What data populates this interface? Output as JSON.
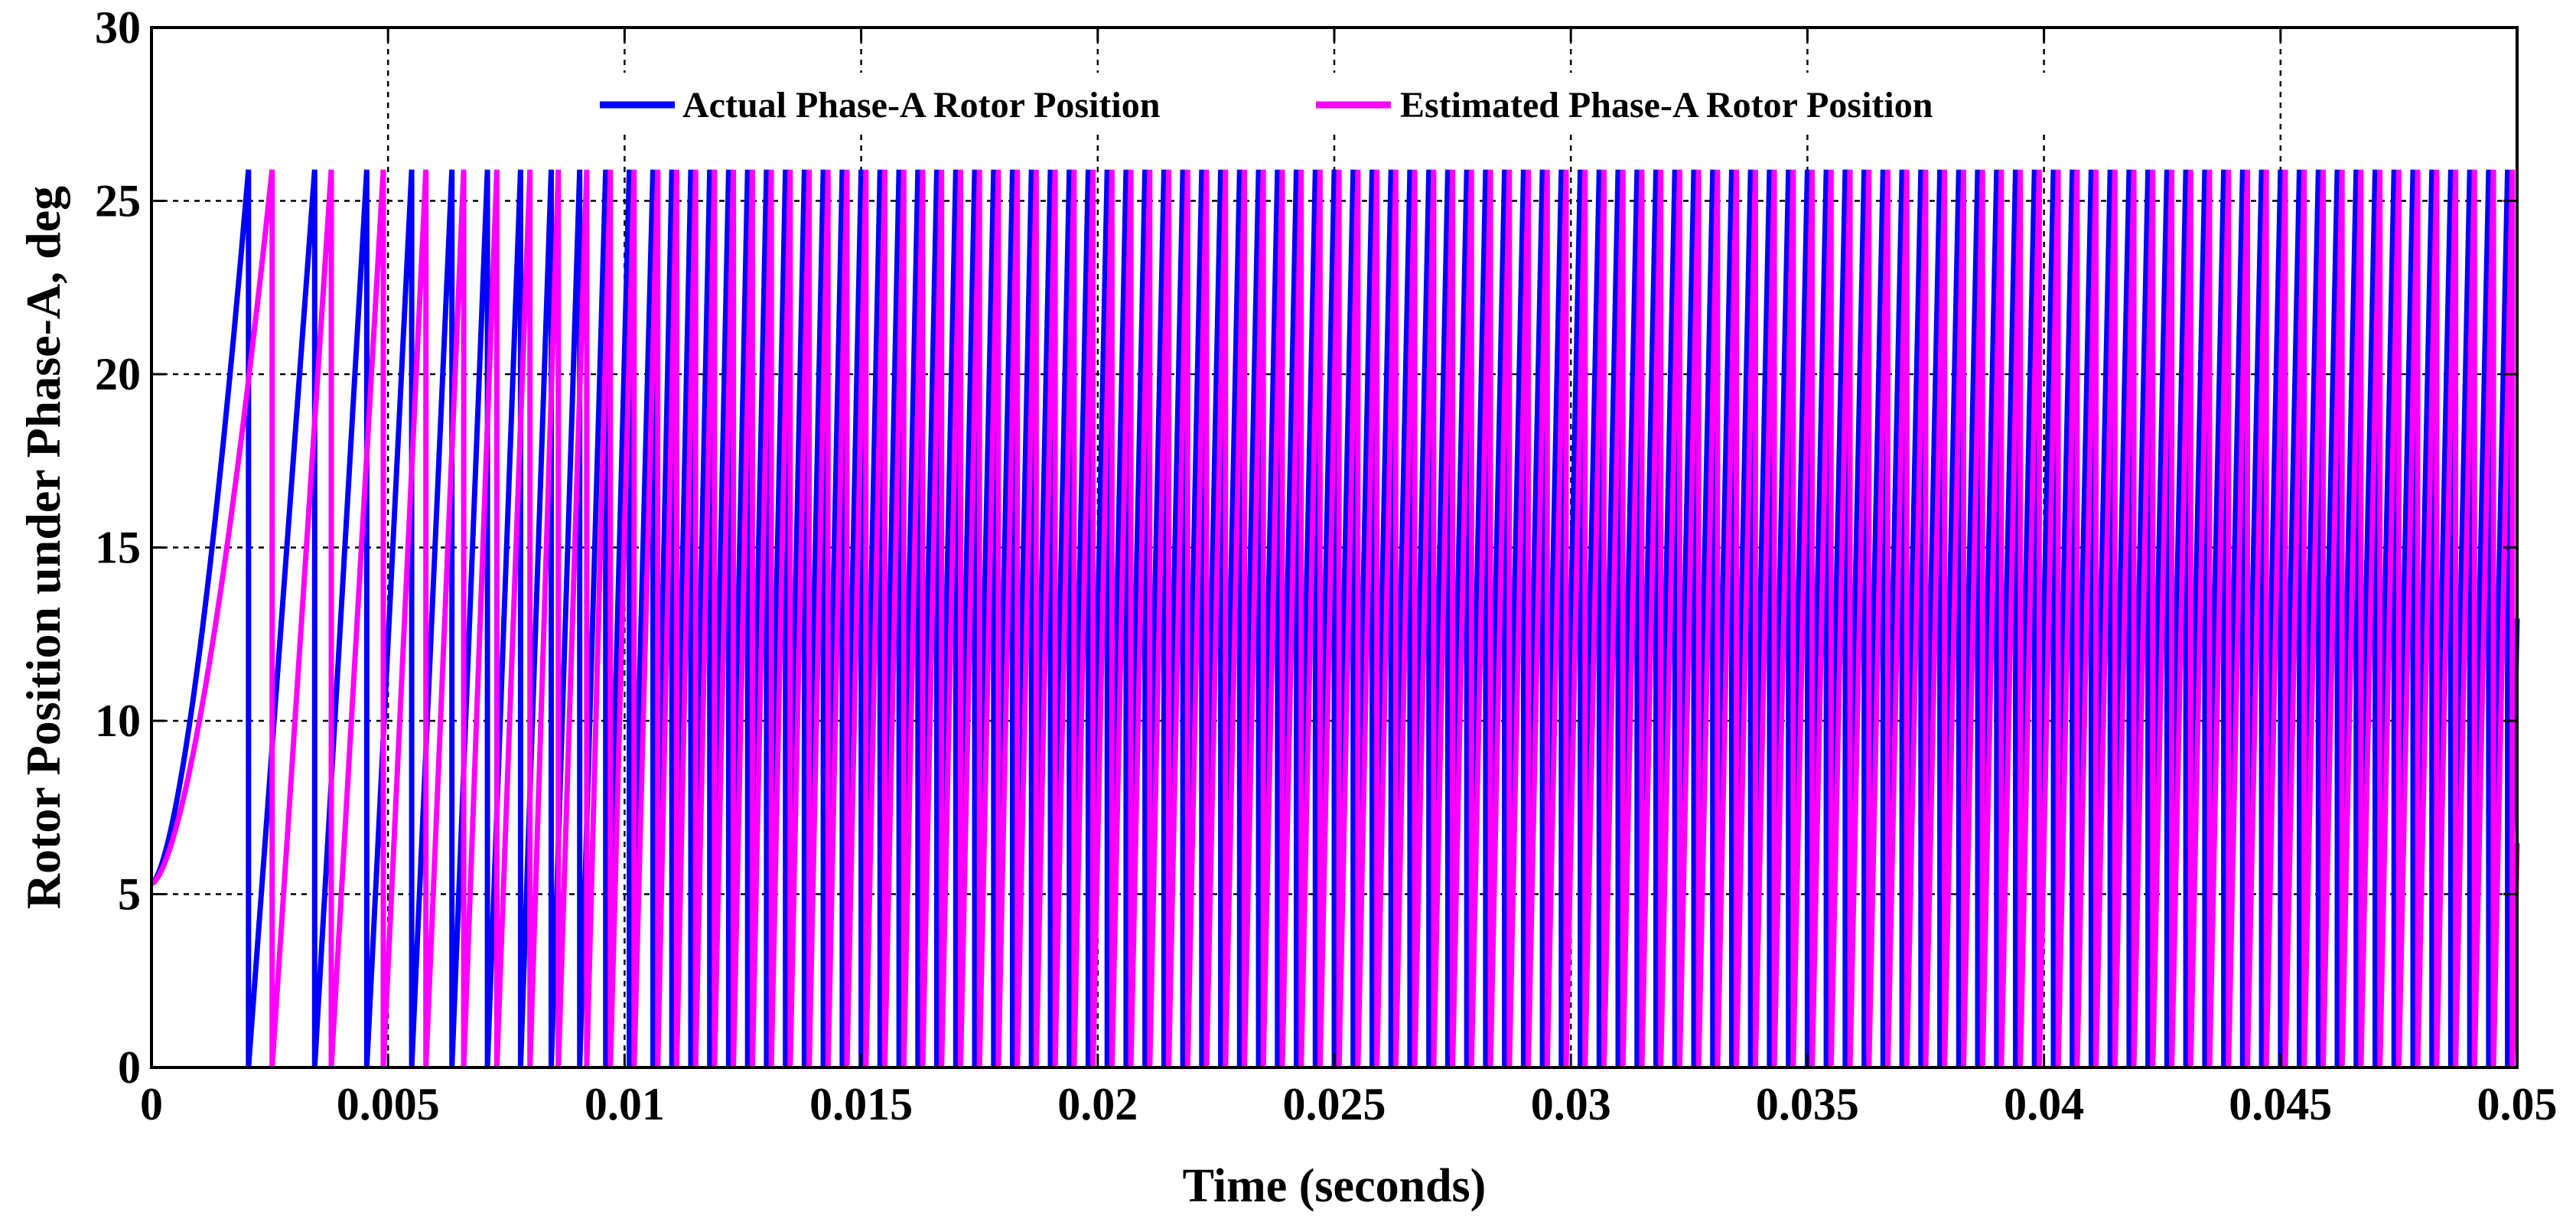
{
  "chart_data": {
    "type": "line",
    "title": "",
    "xlabel": "Time (seconds)",
    "ylabel": "Rotor Position under Phase-A, deg",
    "xlim": [
      0,
      0.05
    ],
    "ylim": [
      0,
      30
    ],
    "x_ticks": [
      "0",
      "0.005",
      "0.01",
      "0.015",
      "0.02",
      "0.025",
      "0.03",
      "0.035",
      "0.04",
      "0.045",
      "0.05"
    ],
    "y_ticks": [
      "0",
      "5",
      "10",
      "15",
      "20",
      "25",
      "30"
    ],
    "grid": true,
    "legend_position": "top-center",
    "series": [
      {
        "name": "Actual Phase-A Rotor Position",
        "color": "#0000FF",
        "initial_value": 5.3,
        "peak_value": 25.9,
        "waveform": "sawtooth",
        "first_reset_time": 0.00205,
        "reset_times": [
          0.00205,
          0.00345,
          0.00455,
          0.0055,
          0.00635,
          0.0071,
          0.0078,
          0.00845,
          0.00905,
          0.0096,
          0.0101,
          0.0106,
          0.011,
          0.0114,
          0.0118,
          0.0122,
          0.0126,
          0.013,
          0.0134,
          0.0138,
          0.0142,
          0.0146,
          0.015,
          0.0154,
          0.0158,
          0.0162,
          0.0166,
          0.017,
          0.0174,
          0.0178,
          0.0182,
          0.0186,
          0.019,
          0.0194,
          0.0198,
          0.0202,
          0.0206,
          0.021,
          0.0214,
          0.0218,
          0.0222,
          0.0226,
          0.023,
          0.0234,
          0.0238,
          0.0242,
          0.0246,
          0.025,
          0.0254,
          0.0258,
          0.0262,
          0.0266,
          0.027,
          0.0274,
          0.0278,
          0.0282,
          0.0286,
          0.029,
          0.0294,
          0.0298,
          0.0302,
          0.0306,
          0.031,
          0.0314,
          0.0318,
          0.0322,
          0.0326,
          0.033,
          0.0334,
          0.0338,
          0.0342,
          0.0346,
          0.035,
          0.0354,
          0.0358,
          0.0362,
          0.0366,
          0.037,
          0.0374,
          0.0378,
          0.0382,
          0.0386,
          0.039,
          0.0394,
          0.0398,
          0.0402,
          0.0406,
          0.041,
          0.0414,
          0.0418,
          0.0422,
          0.0426,
          0.043,
          0.0434,
          0.0438,
          0.0442,
          0.0446,
          0.045,
          0.0454,
          0.0458,
          0.0462,
          0.0466,
          0.047,
          0.0474,
          0.0478,
          0.0482,
          0.0486,
          0.049,
          0.0494,
          0.0498
        ]
      },
      {
        "name": "Estimated Phase-A Rotor Position",
        "color": "#FF00FF",
        "initial_value": 5.3,
        "peak_value": 25.9,
        "waveform": "sawtooth",
        "first_reset_time": 0.00255,
        "reset_times": [
          0.00255,
          0.0038,
          0.0049,
          0.0058,
          0.0066,
          0.0073,
          0.008,
          0.0086,
          0.0092,
          0.0097,
          0.0102,
          0.0107,
          0.0111,
          0.0115,
          0.0119,
          0.0123,
          0.0127,
          0.0131,
          0.0135,
          0.0139,
          0.0143,
          0.0147,
          0.0151,
          0.0155,
          0.0159,
          0.0163,
          0.0167,
          0.0171,
          0.0175,
          0.0179,
          0.0183,
          0.0187,
          0.0191,
          0.0195,
          0.0199,
          0.0203,
          0.0207,
          0.0211,
          0.0215,
          0.0219,
          0.0223,
          0.0227,
          0.0231,
          0.0235,
          0.0239,
          0.0243,
          0.0247,
          0.0251,
          0.0255,
          0.0259,
          0.0263,
          0.0267,
          0.0271,
          0.0275,
          0.0279,
          0.0283,
          0.0287,
          0.0291,
          0.0295,
          0.0299,
          0.0303,
          0.0307,
          0.0311,
          0.0315,
          0.0319,
          0.0323,
          0.0327,
          0.0331,
          0.0335,
          0.0339,
          0.0343,
          0.0347,
          0.0351,
          0.0355,
          0.0359,
          0.0363,
          0.0367,
          0.0371,
          0.0375,
          0.0379,
          0.0383,
          0.0387,
          0.0391,
          0.0395,
          0.0399,
          0.0403,
          0.0407,
          0.0411,
          0.0415,
          0.0419,
          0.0423,
          0.0427,
          0.0431,
          0.0435,
          0.0439,
          0.0443,
          0.0447,
          0.0451,
          0.0455,
          0.0459,
          0.0463,
          0.0467,
          0.0471,
          0.0475,
          0.0479,
          0.0483,
          0.0487,
          0.0491,
          0.0495,
          0.0499
        ]
      }
    ]
  }
}
